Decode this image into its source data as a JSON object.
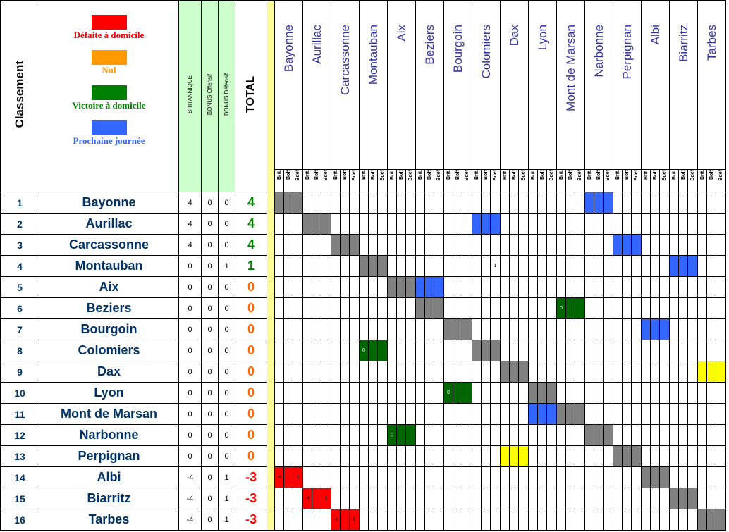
{
  "header": {
    "classement": "Classement",
    "britannique": "BRITANNIQUE",
    "bonus_off": "BONUS Offensif",
    "bonus_def": "BONUS Défensif",
    "total": "TOTAL",
    "sub_labels": [
      "Brit.",
      "Boff",
      "Bdéf"
    ]
  },
  "legend": [
    {
      "label": "Défaite à domicile",
      "color": "#ff0000"
    },
    {
      "label": "Nul",
      "color": "#ff9900"
    },
    {
      "label": "Victoire à domicile",
      "color": "#008000"
    },
    {
      "label": "Prochaine journée",
      "color": "#3366ff"
    }
  ],
  "colors": {
    "grey": "#808080",
    "blue": "#3366ff",
    "green": "#006600",
    "red": "#ff0000",
    "yellow": "#ffff00",
    "total_win": "#008000",
    "total_zero": "#ff6600",
    "total_neg": "#ff0000"
  },
  "teams": [
    "Bayonne",
    "Aurillac",
    "Carcassonne",
    "Montauban",
    "Aix",
    "Beziers",
    "Bourgoin",
    "Colomiers",
    "Dax",
    "Lyon",
    "Mont de Marsan",
    "Narbonne",
    "Perpignan",
    "Albi",
    "Biarritz",
    "Tarbes"
  ],
  "rows": [
    {
      "rank": "1",
      "team": "Bayonne",
      "brit": "4",
      "boff": "0",
      "bdef": "0",
      "total": "4"
    },
    {
      "rank": "2",
      "team": "Aurillac",
      "brit": "4",
      "boff": "0",
      "bdef": "0",
      "total": "4"
    },
    {
      "rank": "3",
      "team": "Carcassonne",
      "brit": "4",
      "boff": "0",
      "bdef": "0",
      "total": "4"
    },
    {
      "rank": "4",
      "team": "Montauban",
      "brit": "0",
      "boff": "0",
      "bdef": "1",
      "total": "1"
    },
    {
      "rank": "5",
      "team": "Aix",
      "brit": "0",
      "boff": "0",
      "bdef": "0",
      "total": "0"
    },
    {
      "rank": "6",
      "team": "Beziers",
      "brit": "0",
      "boff": "0",
      "bdef": "0",
      "total": "0"
    },
    {
      "rank": "7",
      "team": "Bourgoin",
      "brit": "0",
      "boff": "0",
      "bdef": "0",
      "total": "0"
    },
    {
      "rank": "8",
      "team": "Colomiers",
      "brit": "0",
      "boff": "0",
      "bdef": "0",
      "total": "0"
    },
    {
      "rank": "9",
      "team": "Dax",
      "brit": "0",
      "boff": "0",
      "bdef": "0",
      "total": "0"
    },
    {
      "rank": "10",
      "team": "Lyon",
      "brit": "0",
      "boff": "0",
      "bdef": "0",
      "total": "0"
    },
    {
      "rank": "11",
      "team": "Mont de Marsan",
      "brit": "0",
      "boff": "0",
      "bdef": "0",
      "total": "0"
    },
    {
      "rank": "12",
      "team": "Narbonne",
      "brit": "0",
      "boff": "0",
      "bdef": "0",
      "total": "0"
    },
    {
      "rank": "13",
      "team": "Perpignan",
      "brit": "0",
      "boff": "0",
      "bdef": "0",
      "total": "0"
    },
    {
      "rank": "14",
      "team": "Albi",
      "brit": "-4",
      "boff": "0",
      "bdef": "1",
      "total": "-3"
    },
    {
      "rank": "15",
      "team": "Biarritz",
      "brit": "-4",
      "boff": "0",
      "bdef": "1",
      "total": "-3"
    },
    {
      "rank": "16",
      "team": "Tarbes",
      "brit": "-4",
      "boff": "0",
      "bdef": "1",
      "total": "-3"
    }
  ],
  "cells": {
    "1": {
      "1": {
        "c": "grey"
      },
      "12": {
        "c": "blue"
      }
    },
    "2": {
      "2": {
        "c": "grey"
      },
      "8": {
        "c": "blue"
      }
    },
    "3": {
      "3": {
        "c": "grey"
      },
      "13": {
        "c": "blue"
      }
    },
    "4": {
      "4": {
        "c": "grey"
      },
      "8": {
        "c": "white",
        "t": [
          "",
          "",
          "1"
        ]
      },
      "15": {
        "c": "blue"
      }
    },
    "5": {
      "5": {
        "c": "grey"
      },
      "6": {
        "c": "blue"
      }
    },
    "6": {
      "6": {
        "c": "grey"
      },
      "11": {
        "c": "green",
        "t": [
          "0",
          "",
          ""
        ]
      }
    },
    "7": {
      "7": {
        "c": "grey"
      },
      "14": {
        "c": "blue"
      }
    },
    "8": {
      "4": {
        "c": "green",
        "t": [
          "0",
          "",
          ""
        ]
      },
      "8": {
        "c": "grey"
      }
    },
    "9": {
      "9": {
        "c": "grey"
      },
      "16": {
        "c": "yellow"
      }
    },
    "10": {
      "7": {
        "c": "green",
        "t": [
          "0",
          "",
          ""
        ]
      },
      "10": {
        "c": "grey"
      }
    },
    "11": {
      "10": {
        "c": "blue"
      },
      "11": {
        "c": "grey"
      }
    },
    "12": {
      "5": {
        "c": "green",
        "t": [
          "0",
          "",
          ""
        ]
      },
      "12": {
        "c": "grey"
      }
    },
    "13": {
      "9": {
        "c": "yellow"
      },
      "13": {
        "c": "grey"
      }
    },
    "14": {
      "1": {
        "c": "red",
        "t": [
          "-4",
          "",
          "1"
        ]
      },
      "14": {
        "c": "grey"
      }
    },
    "15": {
      "2": {
        "c": "red",
        "t": [
          "-4",
          "",
          "1"
        ]
      },
      "15": {
        "c": "grey"
      }
    },
    "16": {
      "3": {
        "c": "red",
        "t": [
          "-4",
          "",
          "1"
        ]
      },
      "16": {
        "c": "grey"
      }
    }
  }
}
